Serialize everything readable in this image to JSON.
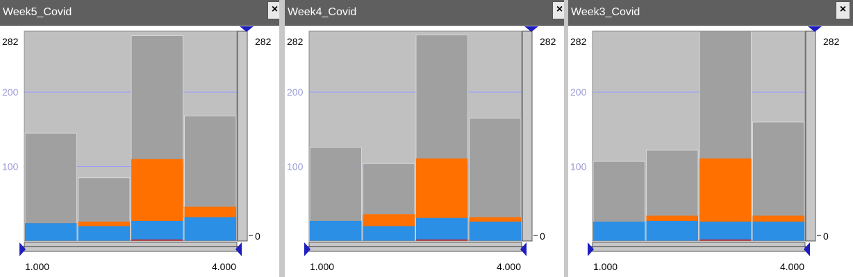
{
  "panels": [
    {
      "title": "Week5_Covid",
      "close_glyph": "×",
      "y_max_label": "282",
      "right_max_label": "282",
      "right_min_label": "0",
      "x_min_label": "1.000",
      "x_max_label": "4.000"
    },
    {
      "title": "Week4_Covid",
      "close_glyph": "×",
      "y_max_label": "282",
      "right_max_label": "282",
      "right_min_label": "0",
      "x_min_label": "1.000",
      "x_max_label": "4.000"
    },
    {
      "title": "Week3_Covid",
      "close_glyph": "×",
      "y_max_label": "282",
      "right_max_label": "282",
      "right_min_label": "0",
      "x_min_label": "1.000",
      "x_max_label": "4.000"
    }
  ],
  "colors": {
    "plot_bg": "#c0c0c0",
    "bar_total": "#a0a0a0",
    "blue": "#2b8fe6",
    "orange": "#ff7000",
    "red": "#cc2020",
    "grid": "#9b9bff",
    "tick_label": "#9b9bd8",
    "marker": "#1d1dc0"
  },
  "chart_data": [
    {
      "type": "bar",
      "title": "Week5_Covid",
      "categories": [
        "1",
        "2",
        "3",
        "4"
      ],
      "ylim": [
        0,
        282
      ],
      "yticks": [
        100,
        200
      ],
      "x_range": [
        "1.000",
        "4.000"
      ],
      "series": [
        {
          "values": [
            145,
            85,
            276,
            168
          ]
        },
        {
          "values": [
            24,
            26,
            110,
            46
          ]
        },
        {
          "values": [
            24,
            20,
            27,
            32
          ]
        },
        {
          "values": [
            0,
            0,
            2,
            0
          ]
        }
      ]
    },
    {
      "type": "bar",
      "title": "Week4_Covid",
      "categories": [
        "1",
        "2",
        "3",
        "4"
      ],
      "ylim": [
        0,
        282
      ],
      "yticks": [
        100,
        200
      ],
      "x_range": [
        "1.000",
        "4.000"
      ],
      "series": [
        {
          "values": [
            126,
            104,
            277,
            165
          ]
        },
        {
          "values": [
            27,
            36,
            111,
            32
          ]
        },
        {
          "values": [
            27,
            20,
            31,
            26
          ]
        },
        {
          "values": [
            0,
            0,
            2,
            0
          ]
        }
      ]
    },
    {
      "type": "bar",
      "title": "Week3_Covid",
      "categories": [
        "1",
        "2",
        "3",
        "4"
      ],
      "ylim": [
        0,
        282
      ],
      "yticks": [
        100,
        200
      ],
      "x_range": [
        "1.000",
        "4.000"
      ],
      "series": [
        {
          "values": [
            107,
            122,
            282,
            160
          ]
        },
        {
          "values": [
            26,
            34,
            111,
            34
          ]
        },
        {
          "values": [
            26,
            27,
            26,
            26
          ]
        },
        {
          "values": [
            0,
            0,
            2,
            0
          ]
        }
      ]
    }
  ]
}
